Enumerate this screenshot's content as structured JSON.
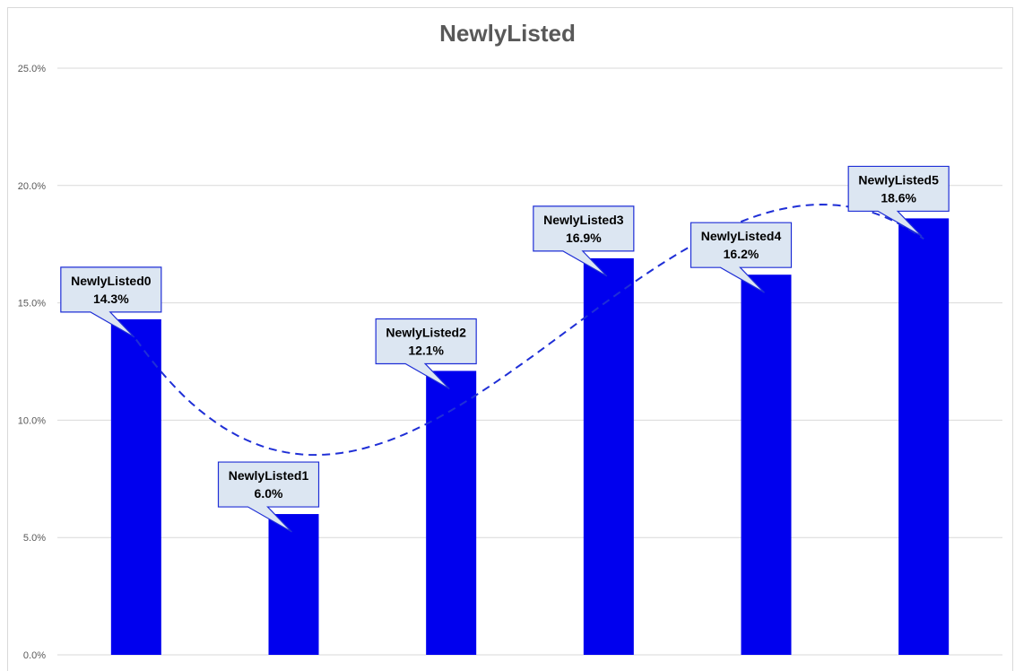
{
  "chart_data": {
    "type": "bar",
    "title": "NewlyListed",
    "categories": [
      "NewlyListed0",
      "NewlyListed1",
      "NewlyListed2",
      "NewlyListed3",
      "NewlyListed4",
      "NewlyListed5"
    ],
    "values": [
      14.3,
      6.0,
      12.1,
      16.9,
      16.2,
      18.6
    ],
    "data_labels": [
      "14.3%",
      "6.0%",
      "12.1%",
      "16.9%",
      "16.2%",
      "18.6%"
    ],
    "ylim": [
      0,
      25
    ],
    "yticks": [
      0,
      5,
      10,
      15,
      20,
      25
    ],
    "ytick_labels": [
      "0.0%",
      "5.0%",
      "10.0%",
      "15.0%",
      "20.0%",
      "25.0%"
    ],
    "xlabel": "",
    "ylabel": "",
    "grid": true,
    "legend": "none",
    "trendline": "polynomial",
    "trendline_style": "dashed",
    "colors": {
      "bar": "#0000ee",
      "trend": "#1f2fd6",
      "callout_fill": "#dce6f2",
      "callout_border": "#1f2fd6",
      "grid": "#d9d9d9"
    }
  }
}
